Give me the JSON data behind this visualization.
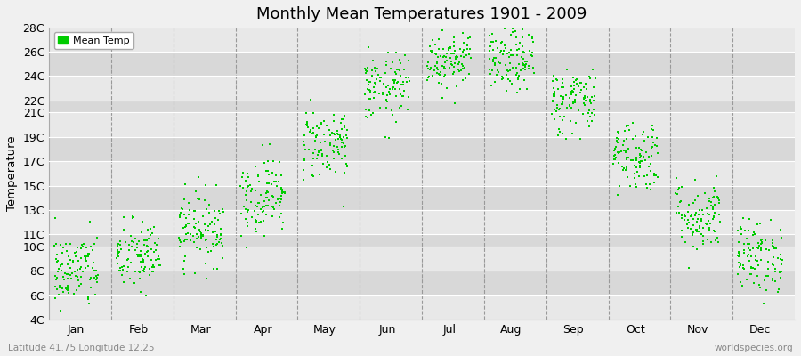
{
  "title": "Monthly Mean Temperatures 1901 - 2009",
  "ylabel": "Temperature",
  "xlabel_bottom_left": "Latitude 41.75 Longitude 12.25",
  "xlabel_bottom_right": "worldspecies.org",
  "legend_label": "Mean Temp",
  "marker_color": "#00cc00",
  "fig_facecolor": "#f0f0f0",
  "plot_bg_color": "#e0e0e0",
  "band_color_light": "#e8e8e8",
  "band_color_dark": "#d8d8d8",
  "ytick_labels": [
    "4C",
    "6C",
    "8C",
    "10C",
    "11C",
    "13C",
    "15C",
    "17C",
    "19C",
    "21C",
    "22C",
    "24C",
    "26C",
    "28C"
  ],
  "ytick_values": [
    4,
    6,
    8,
    10,
    11,
    13,
    15,
    17,
    19,
    21,
    22,
    24,
    26,
    28
  ],
  "ylim": [
    4,
    28
  ],
  "months": [
    "Jan",
    "Feb",
    "Mar",
    "Apr",
    "May",
    "Jun",
    "Jul",
    "Aug",
    "Sep",
    "Oct",
    "Nov",
    "Dec"
  ],
  "month_means": [
    8.0,
    9.2,
    11.5,
    14.2,
    18.5,
    23.0,
    25.5,
    25.2,
    22.0,
    17.5,
    12.5,
    9.2
  ],
  "month_stds": [
    1.6,
    1.5,
    1.5,
    1.6,
    1.5,
    1.4,
    1.3,
    1.3,
    1.4,
    1.5,
    1.5,
    1.5
  ],
  "n_years": 109,
  "seed": 42,
  "dashed_line_color": "#999999"
}
